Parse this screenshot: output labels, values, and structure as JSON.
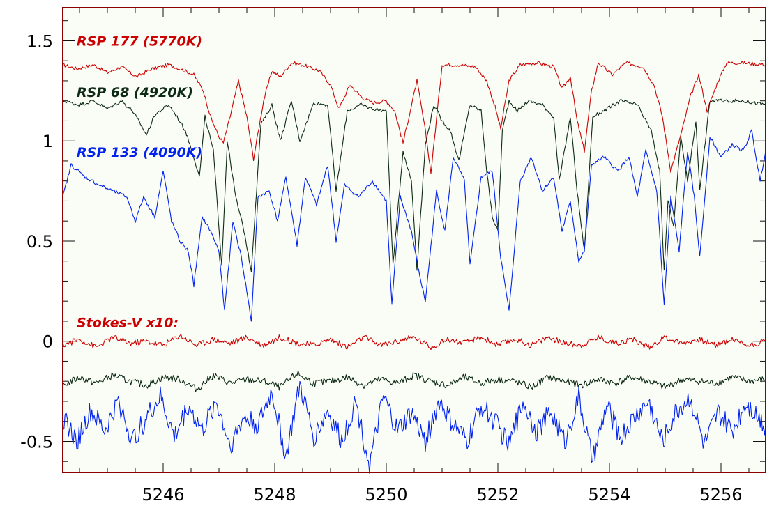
{
  "chart_data": {
    "type": "line",
    "title": "",
    "xlabel": "",
    "ylabel": "",
    "xlim": [
      5244.2,
      5256.8
    ],
    "ylim": [
      -0.655,
      1.665
    ],
    "grid": false,
    "background": "#fafcf6",
    "frame_color": "#8b0000",
    "x_ticks": [
      5246,
      5248,
      5250,
      5252,
      5254,
      5256
    ],
    "x_tick_labels": [
      "5246",
      "5248",
      "5250",
      "5252",
      "5254",
      "5256"
    ],
    "y_ticks": [
      1.5,
      1,
      0.5,
      0,
      -0.5
    ],
    "y_tick_labels": [
      "1.5",
      "1",
      "0.5",
      "0",
      "-0.5"
    ],
    "annotations": [
      {
        "text": "RSP 177 (5770K)",
        "color": "#cc0000",
        "x": 5244.45,
        "y": 1.5
      },
      {
        "text": "RSP 68 (4920K)",
        "color": "#0d2a14",
        "x": 5244.45,
        "y": 1.245
      },
      {
        "text": "RSP 133 (4090K)",
        "color": "#0022ee",
        "x": 5244.45,
        "y": 0.945
      },
      {
        "text": "Stokes-V x10:",
        "color": "#cc0000",
        "x": 5244.45,
        "y": 0.095
      }
    ],
    "series": [
      {
        "kind": "intensity",
        "star": "RSP 177",
        "color": "#cc0000",
        "x": [
          5244.2,
          5244.45,
          5244.75,
          5245.0,
          5245.25,
          5245.52,
          5245.8,
          5246.1,
          5246.3,
          5246.55,
          5246.72,
          5246.85,
          5247.0,
          5247.08,
          5247.2,
          5247.35,
          5247.5,
          5247.62,
          5247.8,
          5247.95,
          5248.1,
          5248.3,
          5248.5,
          5248.8,
          5249.0,
          5249.15,
          5249.35,
          5249.55,
          5249.75,
          5250.0,
          5250.15,
          5250.3,
          5250.55,
          5250.7,
          5250.8,
          5251.0,
          5251.3,
          5251.6,
          5251.8,
          5251.95,
          5252.05,
          5252.2,
          5252.4,
          5252.7,
          5253.0,
          5253.15,
          5253.3,
          5253.42,
          5253.55,
          5253.68,
          5253.8,
          5254.05,
          5254.3,
          5254.6,
          5254.8,
          5254.95,
          5255.1,
          5255.3,
          5255.45,
          5255.6,
          5255.75,
          5255.95,
          5256.1,
          5256.4,
          5256.8
        ],
        "y": [
          1.38,
          1.36,
          1.38,
          1.34,
          1.37,
          1.32,
          1.36,
          1.38,
          1.36,
          1.33,
          1.25,
          1.12,
          1.02,
          0.99,
          1.12,
          1.3,
          1.12,
          0.91,
          1.2,
          1.35,
          1.32,
          1.39,
          1.38,
          1.35,
          1.28,
          1.16,
          1.28,
          1.22,
          1.19,
          1.2,
          1.15,
          0.99,
          1.3,
          1.05,
          0.84,
          1.38,
          1.38,
          1.37,
          1.3,
          1.17,
          1.06,
          1.3,
          1.38,
          1.39,
          1.37,
          1.26,
          1.32,
          1.1,
          0.95,
          1.25,
          1.39,
          1.33,
          1.39,
          1.37,
          1.28,
          1.12,
          0.85,
          1.05,
          1.22,
          1.33,
          1.15,
          1.3,
          1.39,
          1.39,
          1.38
        ]
      },
      {
        "kind": "intensity",
        "star": "RSP 68",
        "color": "#0d2a14",
        "x": [
          5244.2,
          5244.5,
          5244.75,
          5245.0,
          5245.25,
          5245.45,
          5245.6,
          5245.7,
          5245.85,
          5246.1,
          5246.25,
          5246.4,
          5246.55,
          5246.65,
          5246.75,
          5246.9,
          5247.05,
          5247.15,
          5247.3,
          5247.45,
          5247.58,
          5247.75,
          5247.95,
          5248.1,
          5248.3,
          5248.45,
          5248.7,
          5248.95,
          5249.1,
          5249.3,
          5249.55,
          5249.75,
          5250.0,
          5250.12,
          5250.3,
          5250.45,
          5250.55,
          5250.7,
          5250.85,
          5251.0,
          5251.15,
          5251.3,
          5251.5,
          5251.7,
          5251.8,
          5251.9,
          5252.0,
          5252.08,
          5252.2,
          5252.35,
          5252.55,
          5252.8,
          5253.0,
          5253.1,
          5253.3,
          5253.42,
          5253.55,
          5253.7,
          5253.9,
          5254.2,
          5254.5,
          5254.75,
          5254.9,
          5254.98,
          5255.05,
          5255.15,
          5255.28,
          5255.4,
          5255.55,
          5255.62,
          5255.8,
          5256.1,
          5256.4,
          5256.8
        ],
        "y": [
          1.2,
          1.18,
          1.2,
          1.16,
          1.2,
          1.15,
          1.08,
          1.03,
          1.13,
          1.18,
          1.12,
          1.05,
          0.92,
          0.82,
          1.12,
          0.95,
          0.38,
          1.0,
          0.72,
          0.55,
          0.35,
          1.08,
          1.18,
          1.0,
          1.2,
          1.0,
          1.19,
          1.18,
          0.75,
          1.15,
          1.18,
          1.16,
          1.15,
          0.38,
          0.95,
          0.8,
          0.36,
          0.98,
          1.18,
          1.1,
          1.05,
          0.9,
          1.18,
          1.15,
          0.85,
          0.62,
          0.55,
          1.05,
          1.2,
          1.15,
          1.2,
          1.18,
          1.12,
          0.8,
          1.12,
          0.75,
          0.45,
          1.12,
          1.15,
          1.2,
          1.18,
          1.05,
          0.85,
          0.35,
          0.7,
          0.58,
          1.02,
          0.8,
          1.1,
          0.75,
          1.2,
          1.2,
          1.2,
          1.18
        ]
      },
      {
        "kind": "intensity",
        "star": "RSP 133",
        "color": "#0022ee",
        "x": [
          5244.2,
          5244.35,
          5244.6,
          5244.85,
          5245.1,
          5245.35,
          5245.5,
          5245.65,
          5245.85,
          5246.0,
          5246.15,
          5246.3,
          5246.45,
          5246.55,
          5246.7,
          5246.85,
          5247.0,
          5247.1,
          5247.25,
          5247.4,
          5247.5,
          5247.58,
          5247.7,
          5247.9,
          5248.05,
          5248.2,
          5248.4,
          5248.55,
          5248.75,
          5248.95,
          5249.1,
          5249.25,
          5249.5,
          5249.75,
          5250.0,
          5250.1,
          5250.25,
          5250.45,
          5250.58,
          5250.7,
          5250.9,
          5251.05,
          5251.2,
          5251.4,
          5251.5,
          5251.7,
          5251.9,
          5252.05,
          5252.2,
          5252.4,
          5252.6,
          5252.8,
          5253.0,
          5253.15,
          5253.3,
          5253.45,
          5253.55,
          5253.68,
          5253.9,
          5254.15,
          5254.35,
          5254.5,
          5254.65,
          5254.85,
          5254.98,
          5255.1,
          5255.25,
          5255.4,
          5255.52,
          5255.62,
          5255.8,
          5256.0,
          5256.2,
          5256.4,
          5256.55,
          5256.7,
          5256.8
        ],
        "y": [
          0.72,
          0.88,
          0.82,
          0.78,
          0.75,
          0.72,
          0.6,
          0.72,
          0.62,
          0.85,
          0.6,
          0.5,
          0.45,
          0.28,
          0.62,
          0.55,
          0.45,
          0.15,
          0.6,
          0.42,
          0.25,
          0.1,
          0.72,
          0.75,
          0.6,
          0.82,
          0.48,
          0.82,
          0.68,
          0.88,
          0.5,
          0.78,
          0.72,
          0.8,
          0.7,
          0.18,
          0.72,
          0.55,
          0.35,
          0.2,
          0.75,
          0.55,
          0.92,
          0.8,
          0.38,
          0.82,
          0.85,
          0.42,
          0.15,
          0.8,
          0.92,
          0.75,
          0.82,
          0.55,
          0.7,
          0.4,
          0.45,
          0.88,
          0.92,
          0.85,
          0.92,
          0.72,
          0.95,
          0.75,
          0.18,
          0.72,
          0.45,
          0.95,
          0.72,
          0.42,
          1.02,
          0.92,
          0.98,
          0.95,
          1.05,
          0.8,
          0.95
        ]
      },
      {
        "kind": "stokes-v",
        "star": "RSP 177",
        "color": "#cc0000",
        "x": [
          5244.2,
          5244.5,
          5244.8,
          5245.1,
          5245.4,
          5245.7,
          5246.0,
          5246.3,
          5246.6,
          5246.9,
          5247.2,
          5247.5,
          5247.8,
          5248.1,
          5248.4,
          5248.7,
          5249.0,
          5249.3,
          5249.6,
          5249.9,
          5250.2,
          5250.5,
          5250.8,
          5251.1,
          5251.4,
          5251.7,
          5252.0,
          5252.3,
          5252.6,
          5252.9,
          5253.2,
          5253.5,
          5253.8,
          5254.1,
          5254.4,
          5254.7,
          5255.0,
          5255.3,
          5255.6,
          5255.9,
          5256.2,
          5256.5,
          5256.8
        ],
        "y": [
          -0.02,
          0.01,
          -0.03,
          0.02,
          -0.01,
          0.0,
          -0.02,
          0.03,
          -0.02,
          0.01,
          -0.01,
          0.02,
          -0.02,
          0.02,
          -0.01,
          -0.02,
          0.01,
          -0.03,
          0.02,
          -0.02,
          0.0,
          0.02,
          -0.03,
          0.01,
          -0.01,
          0.02,
          -0.02,
          0.01,
          -0.02,
          0.02,
          -0.01,
          -0.02,
          0.02,
          -0.01,
          0.01,
          -0.03,
          0.02,
          -0.01,
          0.01,
          -0.02,
          0.01,
          -0.02,
          0.0
        ]
      },
      {
        "kind": "stokes-v",
        "star": "RSP 68",
        "color": "#0d2a14",
        "x": [
          5244.2,
          5244.5,
          5244.8,
          5245.1,
          5245.4,
          5245.7,
          5246.0,
          5246.3,
          5246.6,
          5246.9,
          5247.2,
          5247.5,
          5247.8,
          5248.1,
          5248.4,
          5248.7,
          5249.0,
          5249.3,
          5249.6,
          5249.9,
          5250.2,
          5250.5,
          5250.8,
          5251.1,
          5251.4,
          5251.7,
          5252.0,
          5252.3,
          5252.6,
          5252.9,
          5253.2,
          5253.5,
          5253.8,
          5254.1,
          5254.4,
          5254.7,
          5255.0,
          5255.3,
          5255.6,
          5255.9,
          5256.2,
          5256.5,
          5256.8
        ],
        "y": [
          -0.22,
          -0.18,
          -0.21,
          -0.17,
          -0.2,
          -0.22,
          -0.18,
          -0.19,
          -0.24,
          -0.17,
          -0.21,
          -0.19,
          -0.2,
          -0.23,
          -0.16,
          -0.21,
          -0.2,
          -0.18,
          -0.22,
          -0.19,
          -0.21,
          -0.17,
          -0.2,
          -0.22,
          -0.18,
          -0.21,
          -0.19,
          -0.2,
          -0.23,
          -0.18,
          -0.2,
          -0.22,
          -0.19,
          -0.21,
          -0.18,
          -0.2,
          -0.23,
          -0.19,
          -0.2,
          -0.21,
          -0.18,
          -0.2,
          -0.19
        ]
      },
      {
        "kind": "stokes-v",
        "star": "RSP 133",
        "color": "#0022ee",
        "x": [
          5244.2,
          5244.45,
          5244.7,
          5244.95,
          5245.2,
          5245.45,
          5245.7,
          5245.95,
          5246.2,
          5246.45,
          5246.7,
          5246.95,
          5247.2,
          5247.45,
          5247.7,
          5247.95,
          5248.2,
          5248.45,
          5248.7,
          5248.95,
          5249.2,
          5249.45,
          5249.7,
          5249.95,
          5250.2,
          5250.45,
          5250.7,
          5250.95,
          5251.2,
          5251.45,
          5251.7,
          5251.95,
          5252.2,
          5252.45,
          5252.7,
          5252.95,
          5253.2,
          5253.45,
          5253.7,
          5253.95,
          5254.2,
          5254.45,
          5254.7,
          5254.95,
          5255.2,
          5255.45,
          5255.7,
          5255.95,
          5256.2,
          5256.45,
          5256.8
        ],
        "y": [
          -0.38,
          -0.5,
          -0.35,
          -0.45,
          -0.3,
          -0.5,
          -0.38,
          -0.28,
          -0.48,
          -0.32,
          -0.45,
          -0.3,
          -0.52,
          -0.38,
          -0.42,
          -0.25,
          -0.58,
          -0.22,
          -0.48,
          -0.35,
          -0.5,
          -0.3,
          -0.62,
          -0.28,
          -0.45,
          -0.36,
          -0.5,
          -0.3,
          -0.42,
          -0.5,
          -0.32,
          -0.4,
          -0.52,
          -0.3,
          -0.45,
          -0.35,
          -0.5,
          -0.28,
          -0.6,
          -0.32,
          -0.48,
          -0.38,
          -0.3,
          -0.5,
          -0.35,
          -0.28,
          -0.52,
          -0.36,
          -0.45,
          -0.3,
          -0.42
        ]
      }
    ]
  }
}
